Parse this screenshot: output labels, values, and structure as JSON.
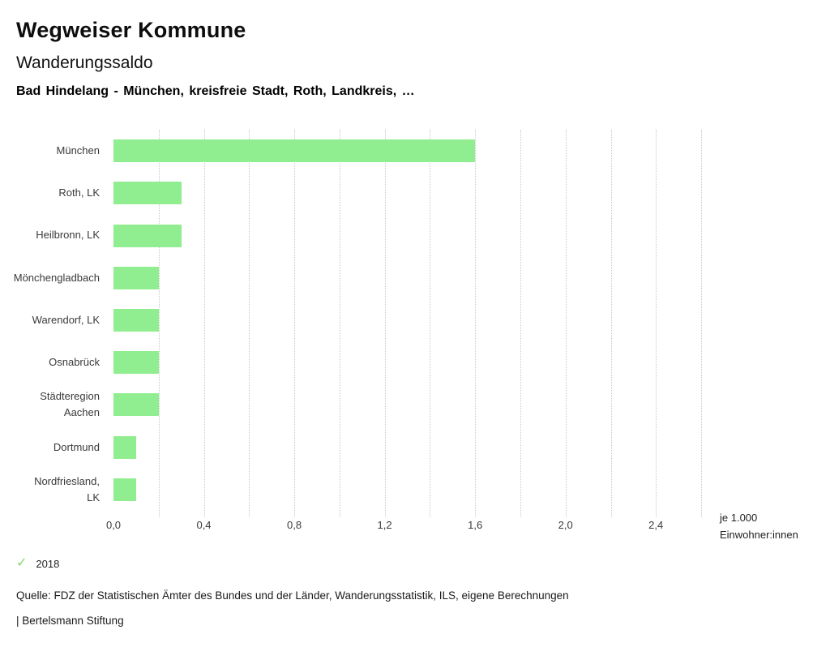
{
  "header": {
    "title": "Wegweiser Kommune",
    "subtitle": "Wanderungssaldo",
    "selection": "Bad Hindelang - München, kreisfreie Stadt, Roth, Landkreis, …"
  },
  "chart_data": {
    "type": "bar",
    "orientation": "horizontal",
    "title": "Wanderungssaldo",
    "categories": [
      "München",
      "Roth, LK",
      "Heilbronn, LK",
      "Mönchengladbach",
      "Warendorf, LK",
      "Osnabrück",
      "Städteregion\nAachen",
      "Dortmund",
      "Nordfriesland,\nLK"
    ],
    "values": [
      1.6,
      0.3,
      0.3,
      0.2,
      0.2,
      0.2,
      0.2,
      0.1,
      0.1
    ],
    "xlim": [
      0,
      2.6
    ],
    "x_ticks": [
      0.0,
      0.4,
      0.8,
      1.2,
      1.6,
      2.0,
      2.4
    ],
    "x_tick_labels": [
      "0,0",
      "0,4",
      "0,8",
      "1,2",
      "1,6",
      "2,0",
      "2,4"
    ],
    "gridline_step": 0.2,
    "grid": true,
    "xlabel": "je 1.000 Einwohner:innen",
    "unit_label_line1": "je 1.000",
    "unit_label_line2": "Einwohner:innen",
    "bar_color": "#90ee90",
    "legend_position": "bottom-left"
  },
  "legend": {
    "year": "2018",
    "check_symbol": "✓",
    "check_color": "#84d96c"
  },
  "footer": {
    "source": "Quelle: FDZ der Statistischen Ämter des Bundes und der Länder, Wanderungsstatistik, ILS, eigene Berechnungen",
    "brand": "| Bertelsmann Stiftung"
  }
}
